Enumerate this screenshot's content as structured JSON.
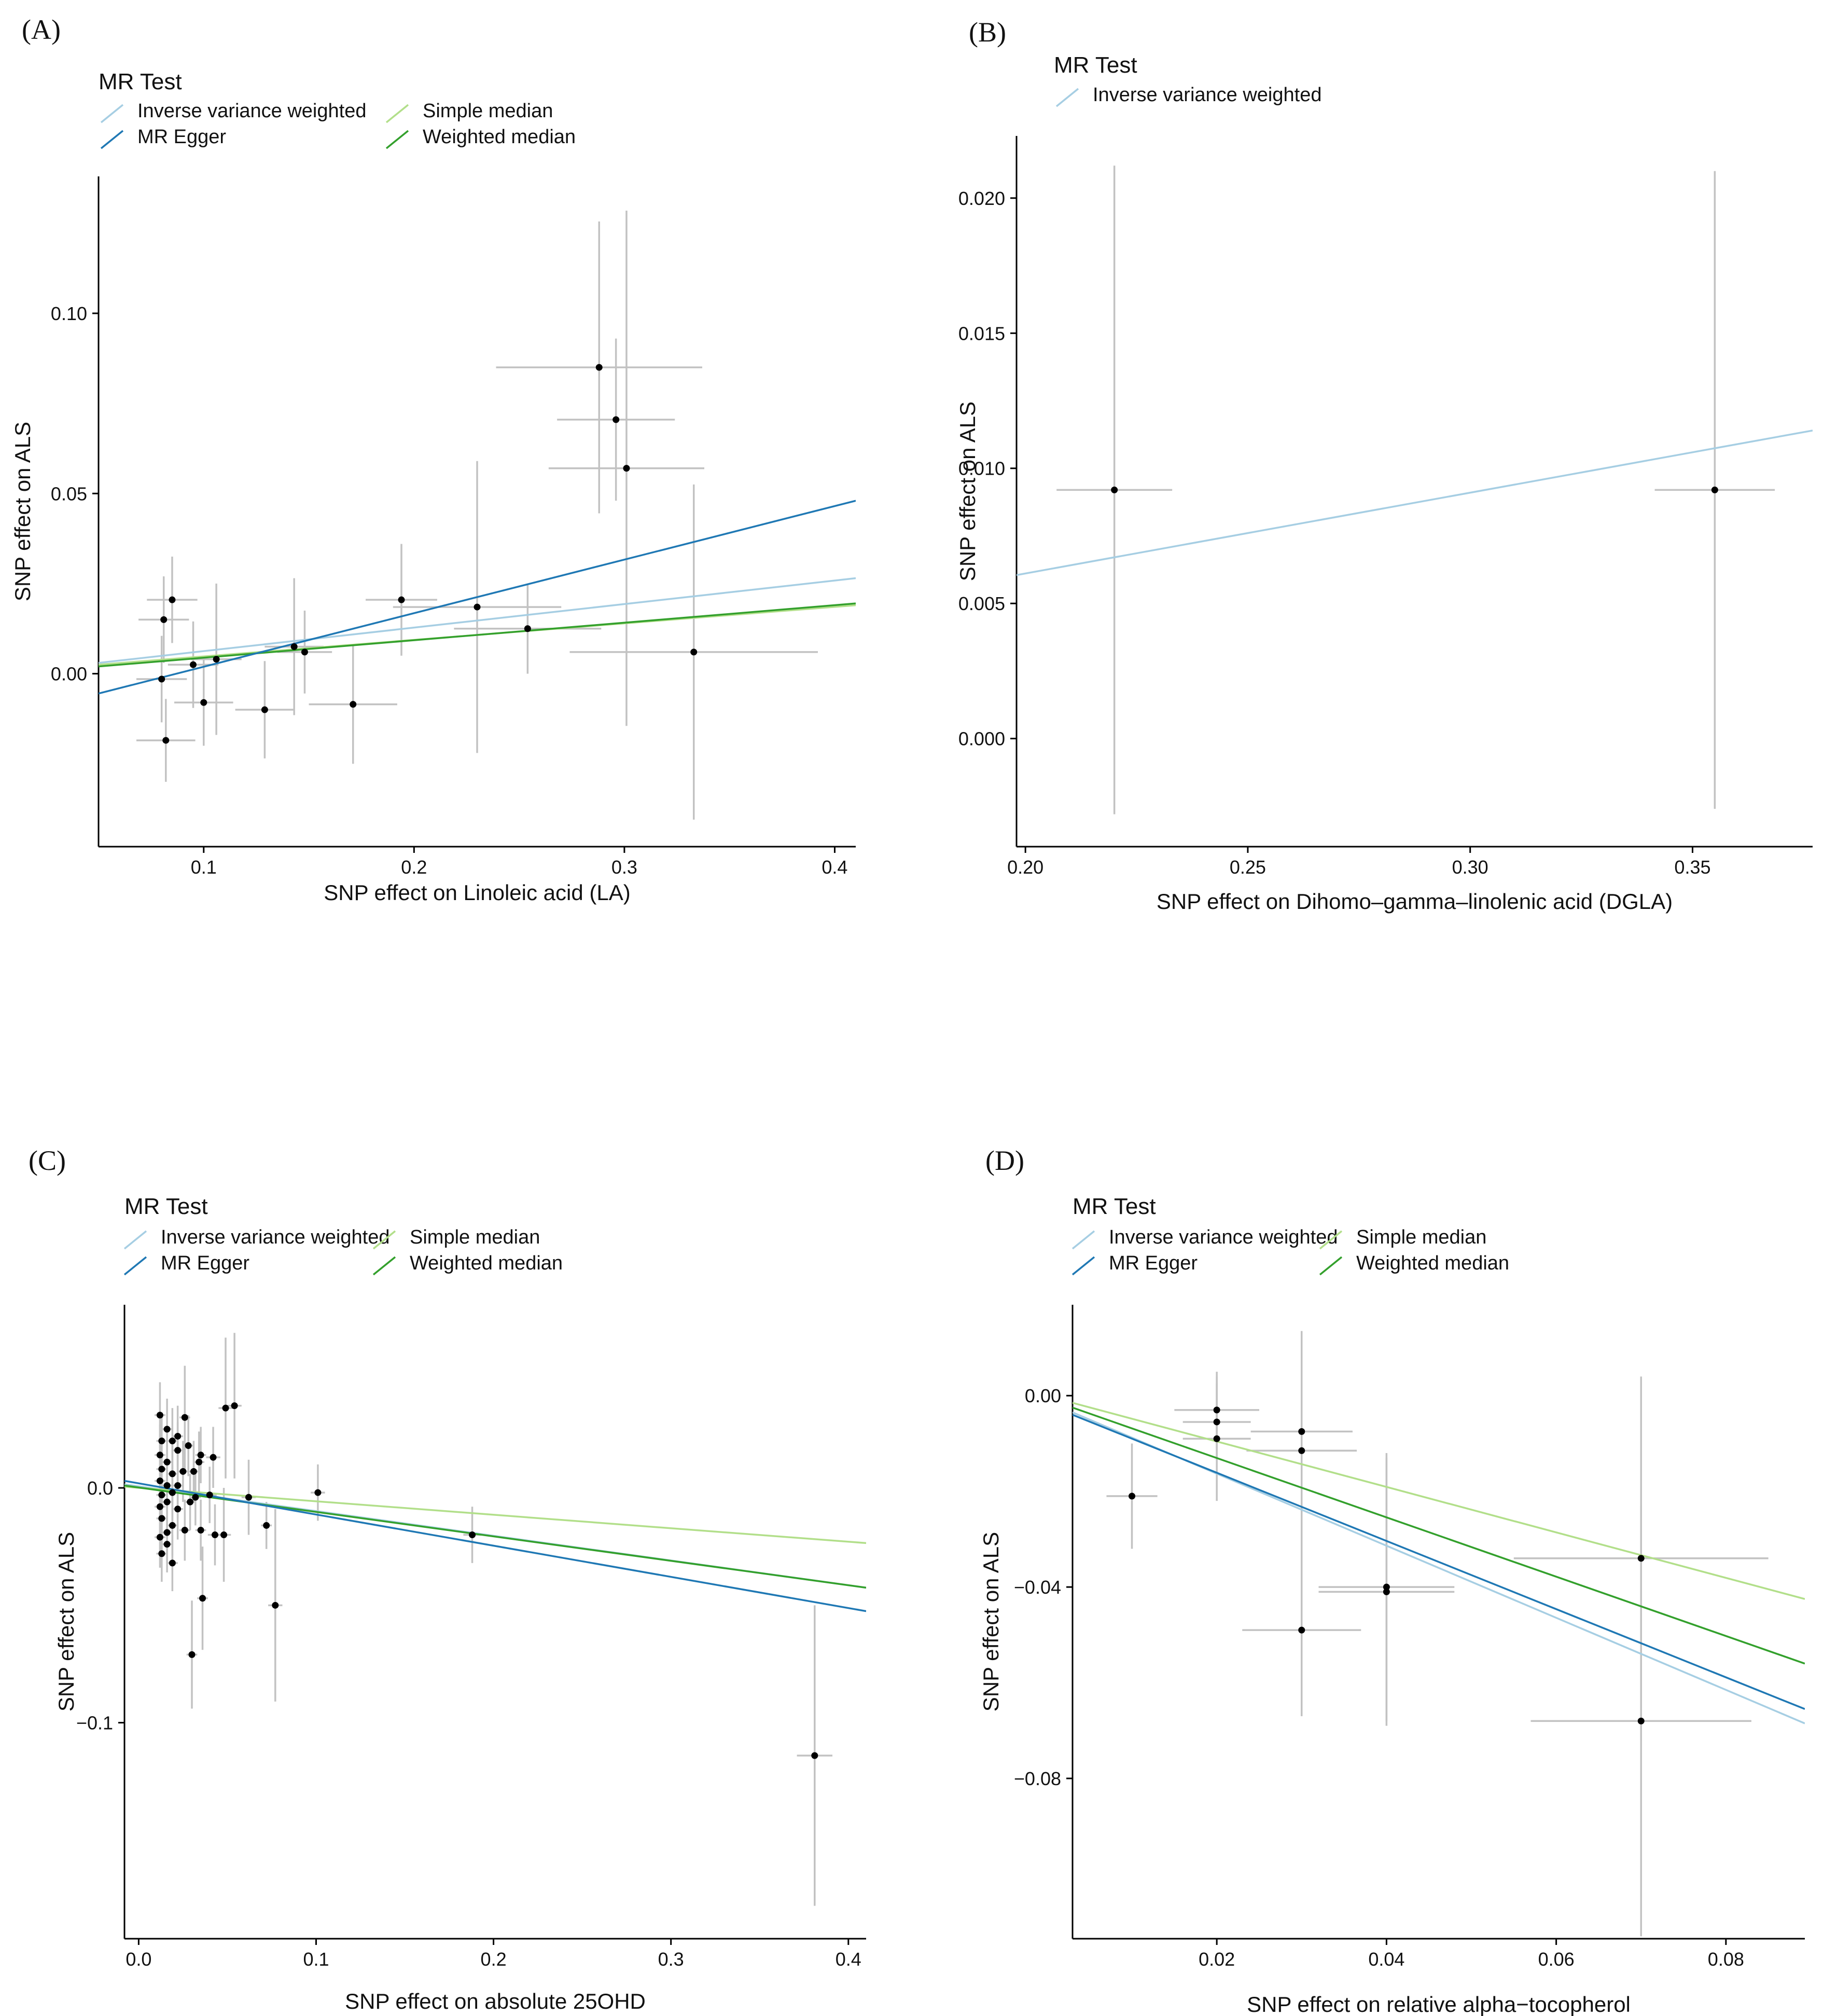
{
  "colors": {
    "ivw": "#a6cee3",
    "egger": "#1f78b4",
    "simple_median": "#b2df8a",
    "weighted_median": "#33a02c",
    "error_bar": "#c2c2c2",
    "point": "#000000"
  },
  "chart_data": [
    {
      "type": "scatter",
      "panel": "(A)",
      "legend_title": "MR Test",
      "legend": [
        {
          "key": "ivw",
          "label": "Inverse variance weighted"
        },
        {
          "key": "simple_median",
          "label": "Simple median"
        },
        {
          "key": "egger",
          "label": "MR Egger"
        },
        {
          "key": "weighted_median",
          "label": "Weighted median"
        }
      ],
      "legend_placement": "top-left",
      "xlabel": "SNP effect on Linoleic acid (LA)",
      "ylabel": "SNP effect on ALS",
      "xlim": [
        0.05,
        0.41
      ],
      "ylim": [
        -0.048,
        0.138
      ],
      "xticks": [
        {
          "v": 0.1,
          "l": "0.1"
        },
        {
          "v": 0.2,
          "l": "0.2"
        },
        {
          "v": 0.3,
          "l": "0.3"
        },
        {
          "v": 0.4,
          "l": "0.4"
        }
      ],
      "yticks": [
        {
          "v": 0,
          "l": "0.00"
        },
        {
          "v": 0.05,
          "l": "0.05"
        },
        {
          "v": 0.1,
          "l": "0.10"
        }
      ],
      "grid": false,
      "lines": [
        {
          "key": "ivw",
          "y_at_xmin": 0.003,
          "y_at_xmax": 0.0265
        },
        {
          "key": "simple_median",
          "y_at_xmin": 0.0025,
          "y_at_xmax": 0.019
        },
        {
          "key": "weighted_median",
          "y_at_xmin": 0.002,
          "y_at_xmax": 0.0195
        },
        {
          "key": "egger",
          "y_at_xmin": -0.0055,
          "y_at_xmax": 0.048
        }
      ],
      "points": [
        {
          "x": 0.08,
          "y": -0.0015,
          "xerr": 0.012,
          "yerr": 0.012
        },
        {
          "x": 0.081,
          "y": 0.015,
          "xerr": 0.012,
          "yerr": 0.012
        },
        {
          "x": 0.082,
          "y": -0.0185,
          "xerr": 0.014,
          "yerr": 0.0115
        },
        {
          "x": 0.085,
          "y": 0.0205,
          "xerr": 0.012,
          "yerr": 0.012
        },
        {
          "x": 0.095,
          "y": 0.0025,
          "xerr": 0.012,
          "yerr": 0.012
        },
        {
          "x": 0.1,
          "y": -0.008,
          "xerr": 0.014,
          "yerr": 0.012
        },
        {
          "x": 0.106,
          "y": 0.004,
          "xerr": 0.012,
          "yerr": 0.021
        },
        {
          "x": 0.129,
          "y": -0.01,
          "xerr": 0.014,
          "yerr": 0.0135
        },
        {
          "x": 0.143,
          "y": 0.0075,
          "xerr": 0.014,
          "yerr": 0.019
        },
        {
          "x": 0.148,
          "y": 0.006,
          "xerr": 0.013,
          "yerr": 0.0115
        },
        {
          "x": 0.171,
          "y": -0.0085,
          "xerr": 0.021,
          "yerr": 0.0165
        },
        {
          "x": 0.194,
          "y": 0.0205,
          "xerr": 0.017,
          "yerr": 0.0155
        },
        {
          "x": 0.23,
          "y": 0.0185,
          "xerr": 0.04,
          "yerr": 0.0405
        },
        {
          "x": 0.254,
          "y": 0.0125,
          "xerr": 0.035,
          "yerr": 0.0125
        },
        {
          "x": 0.288,
          "y": 0.085,
          "xerr": 0.049,
          "yerr": 0.0405
        },
        {
          "x": 0.296,
          "y": 0.0705,
          "xerr": 0.028,
          "yerr": 0.0225
        },
        {
          "x": 0.301,
          "y": 0.057,
          "xerr": 0.037,
          "yerr": 0.0715
        },
        {
          "x": 0.333,
          "y": 0.006,
          "xerr": 0.059,
          "yerr": 0.0465
        }
      ]
    },
    {
      "type": "scatter",
      "panel": "(B)",
      "legend_title": "MR Test",
      "legend": [
        {
          "key": "ivw",
          "label": "Inverse variance weighted"
        }
      ],
      "legend_placement": "top-left",
      "xlabel": "SNP effect on Dihomo–gamma–linolenic acid (DGLA)",
      "ylabel": "SNP effect on ALS",
      "xlim": [
        0.198,
        0.377
      ],
      "ylim": [
        -0.004,
        0.0223
      ],
      "xticks": [
        {
          "v": 0.2,
          "l": "0.20"
        },
        {
          "v": 0.25,
          "l": "0.25"
        },
        {
          "v": 0.3,
          "l": "0.30"
        },
        {
          "v": 0.35,
          "l": "0.35"
        }
      ],
      "yticks": [
        {
          "v": 0,
          "l": "0.000"
        },
        {
          "v": 0.005,
          "l": "0.005"
        },
        {
          "v": 0.01,
          "l": "0.010"
        },
        {
          "v": 0.015,
          "l": "0.015"
        },
        {
          "v": 0.02,
          "l": "0.020"
        }
      ],
      "grid": false,
      "lines": [
        {
          "key": "ivw",
          "y_at_xmin": 0.00605,
          "y_at_xmax": 0.0114
        }
      ],
      "points": [
        {
          "x": 0.22,
          "y": 0.0092,
          "xerr": 0.013,
          "yerr": 0.012
        },
        {
          "x": 0.355,
          "y": 0.0092,
          "xerr": 0.0135,
          "yerr": 0.0118
        }
      ]
    },
    {
      "type": "scatter",
      "panel": "(C)",
      "legend_title": "MR Test",
      "legend": [
        {
          "key": "ivw",
          "label": "Inverse variance weighted"
        },
        {
          "key": "simple_median",
          "label": "Simple median"
        },
        {
          "key": "egger",
          "label": "MR Egger"
        },
        {
          "key": "weighted_median",
          "label": "Weighted median"
        }
      ],
      "legend_placement": "top-left",
      "xlabel": "SNP effect on absolute 25OHD",
      "ylabel": "SNP effect on ALS",
      "xlim": [
        -0.008,
        0.41
      ],
      "ylim": [
        -0.192,
        0.078
      ],
      "xticks": [
        {
          "v": 0,
          "l": "0.0"
        },
        {
          "v": 0.1,
          "l": "0.1"
        },
        {
          "v": 0.2,
          "l": "0.2"
        },
        {
          "v": 0.3,
          "l": "0.3"
        },
        {
          "v": 0.4,
          "l": "0.4"
        }
      ],
      "yticks": [
        {
          "v": -0.1,
          "l": "−0.1"
        },
        {
          "v": 0,
          "l": "0.0"
        }
      ],
      "grid": false,
      "lines": [
        {
          "key": "ivw",
          "y_at_xmin": 0.0015,
          "y_at_xmax": -0.0425
        },
        {
          "key": "simple_median",
          "y_at_xmin": 0.0005,
          "y_at_xmax": -0.0235
        },
        {
          "key": "weighted_median",
          "y_at_xmin": 0.001,
          "y_at_xmax": -0.0425
        },
        {
          "key": "egger",
          "y_at_xmin": 0.003,
          "y_at_xmax": -0.0525
        }
      ],
      "points": [
        {
          "x": 0.012,
          "y": 0.031,
          "xerr": 0.003,
          "yerr": 0.014
        },
        {
          "x": 0.013,
          "y": 0.02,
          "xerr": 0.003,
          "yerr": 0.012
        },
        {
          "x": 0.012,
          "y": 0.014,
          "xerr": 0.003,
          "yerr": 0.013
        },
        {
          "x": 0.013,
          "y": 0.008,
          "xerr": 0.003,
          "yerr": 0.014
        },
        {
          "x": 0.012,
          "y": 0.003,
          "xerr": 0.003,
          "yerr": 0.012
        },
        {
          "x": 0.013,
          "y": -0.003,
          "xerr": 0.003,
          "yerr": 0.013
        },
        {
          "x": 0.012,
          "y": -0.008,
          "xerr": 0.003,
          "yerr": 0.012
        },
        {
          "x": 0.013,
          "y": -0.013,
          "xerr": 0.003,
          "yerr": 0.014
        },
        {
          "x": 0.012,
          "y": -0.021,
          "xerr": 0.003,
          "yerr": 0.013
        },
        {
          "x": 0.013,
          "y": -0.028,
          "xerr": 0.003,
          "yerr": 0.012
        },
        {
          "x": 0.016,
          "y": 0.025,
          "xerr": 0.003,
          "yerr": 0.013
        },
        {
          "x": 0.016,
          "y": 0.011,
          "xerr": 0.003,
          "yerr": 0.014
        },
        {
          "x": 0.016,
          "y": 0.001,
          "xerr": 0.003,
          "yerr": 0.012
        },
        {
          "x": 0.016,
          "y": -0.006,
          "xerr": 0.003,
          "yerr": 0.013
        },
        {
          "x": 0.016,
          "y": -0.019,
          "xerr": 0.003,
          "yerr": 0.013
        },
        {
          "x": 0.016,
          "y": -0.024,
          "xerr": 0.003,
          "yerr": 0.012
        },
        {
          "x": 0.019,
          "y": 0.02,
          "xerr": 0.003,
          "yerr": 0.014
        },
        {
          "x": 0.019,
          "y": 0.006,
          "xerr": 0.003,
          "yerr": 0.013
        },
        {
          "x": 0.019,
          "y": -0.002,
          "xerr": 0.003,
          "yerr": 0.012
        },
        {
          "x": 0.019,
          "y": -0.016,
          "xerr": 0.003,
          "yerr": 0.013
        },
        {
          "x": 0.019,
          "y": -0.032,
          "xerr": 0.003,
          "yerr": 0.012
        },
        {
          "x": 0.022,
          "y": 0.022,
          "xerr": 0.003,
          "yerr": 0.013
        },
        {
          "x": 0.022,
          "y": 0.016,
          "xerr": 0.003,
          "yerr": 0.012
        },
        {
          "x": 0.022,
          "y": 0.001,
          "xerr": 0.003,
          "yerr": 0.014
        },
        {
          "x": 0.022,
          "y": -0.009,
          "xerr": 0.003,
          "yerr": 0.013
        },
        {
          "x": 0.025,
          "y": 0.007,
          "xerr": 0.003,
          "yerr": 0.013
        },
        {
          "x": 0.026,
          "y": 0.03,
          "xerr": 0.003,
          "yerr": 0.022
        },
        {
          "x": 0.026,
          "y": -0.018,
          "xerr": 0.003,
          "yerr": 0.013
        },
        {
          "x": 0.028,
          "y": 0.018,
          "xerr": 0.003,
          "yerr": 0.013
        },
        {
          "x": 0.029,
          "y": -0.006,
          "xerr": 0.003,
          "yerr": 0.012
        },
        {
          "x": 0.03,
          "y": -0.071,
          "xerr": 0.003,
          "yerr": 0.023
        },
        {
          "x": 0.031,
          "y": 0.007,
          "xerr": 0.003,
          "yerr": 0.013
        },
        {
          "x": 0.032,
          "y": -0.004,
          "xerr": 0.003,
          "yerr": 0.012
        },
        {
          "x": 0.034,
          "y": 0.011,
          "xerr": 0.003,
          "yerr": 0.013
        },
        {
          "x": 0.035,
          "y": 0.014,
          "xerr": 0.003,
          "yerr": 0.012
        },
        {
          "x": 0.035,
          "y": -0.018,
          "xerr": 0.003,
          "yerr": 0.013
        },
        {
          "x": 0.036,
          "y": -0.047,
          "xerr": 0.003,
          "yerr": 0.022
        },
        {
          "x": 0.04,
          "y": -0.003,
          "xerr": 0.004,
          "yerr": 0.012
        },
        {
          "x": 0.042,
          "y": 0.013,
          "xerr": 0.004,
          "yerr": 0.013
        },
        {
          "x": 0.043,
          "y": -0.02,
          "xerr": 0.004,
          "yerr": 0.013
        },
        {
          "x": 0.048,
          "y": -0.02,
          "xerr": 0.004,
          "yerr": 0.02
        },
        {
          "x": 0.049,
          "y": 0.034,
          "xerr": 0.004,
          "yerr": 0.03
        },
        {
          "x": 0.054,
          "y": 0.035,
          "xerr": 0.004,
          "yerr": 0.031
        },
        {
          "x": 0.062,
          "y": -0.004,
          "xerr": 0.004,
          "yerr": 0.016
        },
        {
          "x": 0.072,
          "y": -0.016,
          "xerr": 0.003,
          "yerr": 0.01
        },
        {
          "x": 0.077,
          "y": -0.05,
          "xerr": 0.004,
          "yerr": 0.041
        },
        {
          "x": 0.101,
          "y": -0.002,
          "xerr": 0.004,
          "yerr": 0.012
        },
        {
          "x": 0.188,
          "y": -0.02,
          "xerr": 0.005,
          "yerr": 0.012
        },
        {
          "x": 0.381,
          "y": -0.114,
          "xerr": 0.01,
          "yerr": 0.064
        }
      ]
    },
    {
      "type": "scatter",
      "panel": "(D)",
      "legend_title": "MR Test",
      "legend": [
        {
          "key": "ivw",
          "label": "Inverse variance weighted"
        },
        {
          "key": "simple_median",
          "label": "Simple median"
        },
        {
          "key": "egger",
          "label": "MR Egger"
        },
        {
          "key": "weighted_median",
          "label": "Weighted median"
        }
      ],
      "legend_placement": "top-left",
      "xlabel": "SNP effect on relative alpha−tocopherol",
      "ylabel": "SNP effect on ALS",
      "xlim": [
        0.003,
        0.0893
      ],
      "ylim": [
        -0.1135,
        0.019
      ],
      "xticks": [
        {
          "v": 0.02,
          "l": "0.02"
        },
        {
          "v": 0.04,
          "l": "0.04"
        },
        {
          "v": 0.06,
          "l": "0.06"
        },
        {
          "v": 0.08,
          "l": "0.08"
        }
      ],
      "yticks": [
        {
          "v": -0.08,
          "l": "−0.08"
        },
        {
          "v": -0.04,
          "l": "−0.04"
        },
        {
          "v": 0,
          "l": "0.00"
        }
      ],
      "grid": false,
      "lines": [
        {
          "key": "ivw",
          "y_at_xmin": -0.0035,
          "y_at_xmax": -0.0685
        },
        {
          "key": "egger",
          "y_at_xmin": -0.004,
          "y_at_xmax": -0.0655
        },
        {
          "key": "weighted_median",
          "y_at_xmin": -0.0025,
          "y_at_xmax": -0.056
        },
        {
          "key": "simple_median",
          "y_at_xmin": -0.0015,
          "y_at_xmax": -0.0425
        }
      ],
      "points": [
        {
          "x": 0.01,
          "y": -0.021,
          "xerr": 0.003,
          "yerr": 0.011
        },
        {
          "x": 0.02,
          "y": -0.003,
          "xerr": 0.005,
          "yerr": 0.008
        },
        {
          "x": 0.02,
          "y": -0.0055,
          "xerr": 0.004,
          "yerr": 0.008
        },
        {
          "x": 0.02,
          "y": -0.009,
          "xerr": 0.004,
          "yerr": 0.013
        },
        {
          "x": 0.03,
          "y": -0.0075,
          "xerr": 0.006,
          "yerr": 0.021
        },
        {
          "x": 0.03,
          "y": -0.0115,
          "xerr": 0.0065,
          "yerr": 0.025
        },
        {
          "x": 0.03,
          "y": -0.049,
          "xerr": 0.007,
          "yerr": 0.018
        },
        {
          "x": 0.04,
          "y": -0.04,
          "xerr": 0.008,
          "yerr": 0.028
        },
        {
          "x": 0.04,
          "y": -0.041,
          "xerr": 0.008,
          "yerr": 0.028
        },
        {
          "x": 0.07,
          "y": -0.034,
          "xerr": 0.015,
          "yerr": 0.038
        },
        {
          "x": 0.07,
          "y": -0.068,
          "xerr": 0.013,
          "yerr": 0.045
        }
      ]
    }
  ]
}
